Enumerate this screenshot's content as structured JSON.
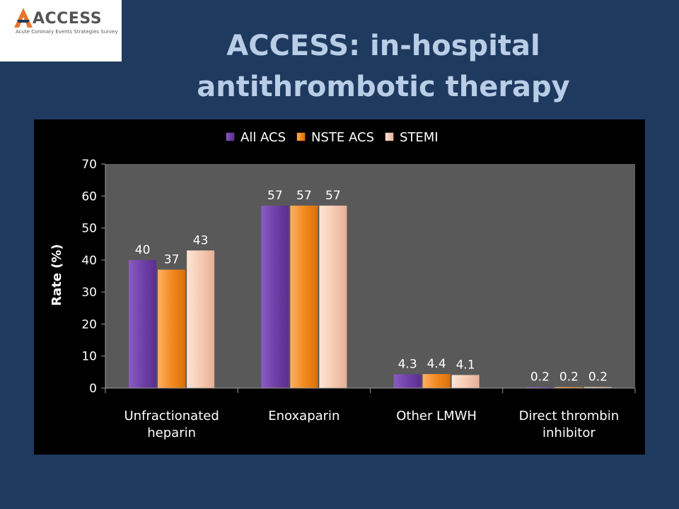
{
  "logo": {
    "name": "ACCESS",
    "tagline": "Acute Coronary Events Strategies Survey"
  },
  "title": "ACCESS: in-hospital antithrombotic therapy",
  "colors": {
    "background": "#1f3a5f",
    "title": "#b9cde6",
    "plot_area": "#595959",
    "all_acs": "#7040a8",
    "nste_acs": "#f28a1e",
    "stemi": "#f6cbb3"
  },
  "chart_data": {
    "type": "bar",
    "title": "",
    "xlabel": "",
    "ylabel": "Rate (%)",
    "ylim": [
      0,
      70
    ],
    "yticks": [
      0,
      10,
      20,
      30,
      40,
      50,
      60,
      70
    ],
    "grid": false,
    "legend_position": "top",
    "categories": [
      [
        "Unfractionated",
        "heparin"
      ],
      [
        "Enoxaparin"
      ],
      [
        "Other LMWH"
      ],
      [
        "Direct thrombin",
        "inhibitor"
      ]
    ],
    "series": [
      {
        "name": "All ACS",
        "values": [
          40,
          57,
          4.3,
          0.2
        ],
        "labels": [
          "40",
          "57",
          "4.3",
          "0.2"
        ]
      },
      {
        "name": "NSTE ACS",
        "values": [
          37,
          57,
          4.4,
          0.2
        ],
        "labels": [
          "37",
          "57",
          "4.4",
          "0.2"
        ]
      },
      {
        "name": "STEMI",
        "values": [
          43,
          57,
          4.1,
          0.2
        ],
        "labels": [
          "43",
          "57",
          "4.1",
          "0.2"
        ]
      }
    ]
  }
}
